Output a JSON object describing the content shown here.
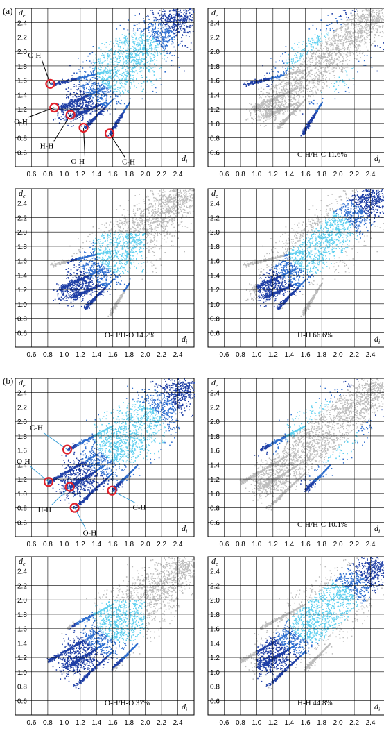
{
  "panel_labels": [
    "(a)",
    "(b)"
  ],
  "chart_data": [
    {
      "type": "scatter",
      "panel": "a",
      "title": "",
      "xlabel": "d",
      "xlabel_sub": "i",
      "ylabel": "d",
      "ylabel_sub": "e",
      "xlim": [
        0.4,
        2.6
      ],
      "ylim": [
        0.4,
        2.6
      ],
      "xticks": [
        "0.6",
        "0.8",
        "1.0",
        "1.2",
        "1.4",
        "1.6",
        "1.8",
        "2.0",
        "2.2",
        "2.4"
      ],
      "yticks": [
        "0.6",
        "0.8",
        "1.0",
        "1.2",
        "1.4",
        "1.6",
        "1.8",
        "2.0",
        "2.2",
        "2.4"
      ],
      "caption": "",
      "highlight": "all",
      "markers": [
        {
          "label": "C-H",
          "x": 0.83,
          "y": 1.55
        },
        {
          "label": "O-H",
          "x": 0.88,
          "y": 1.22
        },
        {
          "label": "H-H",
          "x": 1.08,
          "y": 1.12
        },
        {
          "label": "O-H",
          "x": 1.24,
          "y": 0.94
        },
        {
          "label": "C-H",
          "x": 1.56,
          "y": 0.86
        }
      ]
    },
    {
      "type": "scatter",
      "panel": "a",
      "caption": "C-H/H-C 11.6%",
      "highlight": "CH",
      "xlabel": "d",
      "xlabel_sub": "i",
      "ylabel": "d",
      "ylabel_sub": "e",
      "xlim": [
        0.4,
        2.6
      ],
      "ylim": [
        0.4,
        2.6
      ]
    },
    {
      "type": "scatter",
      "panel": "a",
      "caption": "O-H/H-O 14.2%",
      "highlight": "OH",
      "xlabel": "d",
      "xlabel_sub": "i",
      "ylabel": "d",
      "ylabel_sub": "e",
      "xlim": [
        0.4,
        2.6
      ],
      "ylim": [
        0.4,
        2.6
      ]
    },
    {
      "type": "scatter",
      "panel": "a",
      "caption": "H-H 66.6%",
      "highlight": "HH",
      "xlabel": "d",
      "xlabel_sub": "i",
      "ylabel": "d",
      "ylabel_sub": "e",
      "xlim": [
        0.4,
        2.6
      ],
      "ylim": [
        0.4,
        2.6
      ]
    },
    {
      "type": "scatter",
      "panel": "b",
      "title": "",
      "xlabel": "d",
      "xlabel_sub": "i",
      "ylabel": "d",
      "ylabel_sub": "e",
      "xlim": [
        0.4,
        2.6
      ],
      "ylim": [
        0.4,
        2.6
      ],
      "caption": "",
      "highlight": "all",
      "markers": [
        {
          "label": "C-H",
          "x": 1.04,
          "y": 1.61
        },
        {
          "label": "O-H",
          "x": 0.81,
          "y": 1.16
        },
        {
          "label": "H-H",
          "x": 1.07,
          "y": 1.09
        },
        {
          "label": "O-H",
          "x": 1.13,
          "y": 0.8
        },
        {
          "label": "C-H",
          "x": 1.59,
          "y": 1.04
        }
      ]
    },
    {
      "type": "scatter",
      "panel": "b",
      "caption": "C-H/H-C 10.1%",
      "highlight": "CH",
      "xlabel": "d",
      "xlabel_sub": "i",
      "ylabel": "d",
      "ylabel_sub": "e",
      "xlim": [
        0.4,
        2.6
      ],
      "ylim": [
        0.4,
        2.6
      ]
    },
    {
      "type": "scatter",
      "panel": "b",
      "caption": "O-H/H-O 37%",
      "highlight": "OH",
      "xlabel": "d",
      "xlabel_sub": "i",
      "ylabel": "d",
      "ylabel_sub": "e",
      "xlim": [
        0.4,
        2.6
      ],
      "ylim": [
        0.4,
        2.6
      ]
    },
    {
      "type": "scatter",
      "panel": "b",
      "caption": "H-H 44.8%",
      "highlight": "HH",
      "xlabel": "d",
      "xlabel_sub": "i",
      "ylabel": "d",
      "ylabel_sub": "e",
      "xlim": [
        0.4,
        2.6
      ],
      "ylim": [
        0.4,
        2.6
      ]
    }
  ],
  "colors": {
    "fingerprint_dark": "#1f3fa6",
    "fingerprint_mid": "#2f6fd0",
    "fingerprint_light": "#5fd0f0",
    "background_points": "#bdbdbd",
    "marker_circle": "#e0202a",
    "arrow_a": "#000000",
    "arrow_b": "#3aa0d8",
    "grid": "#000000"
  }
}
